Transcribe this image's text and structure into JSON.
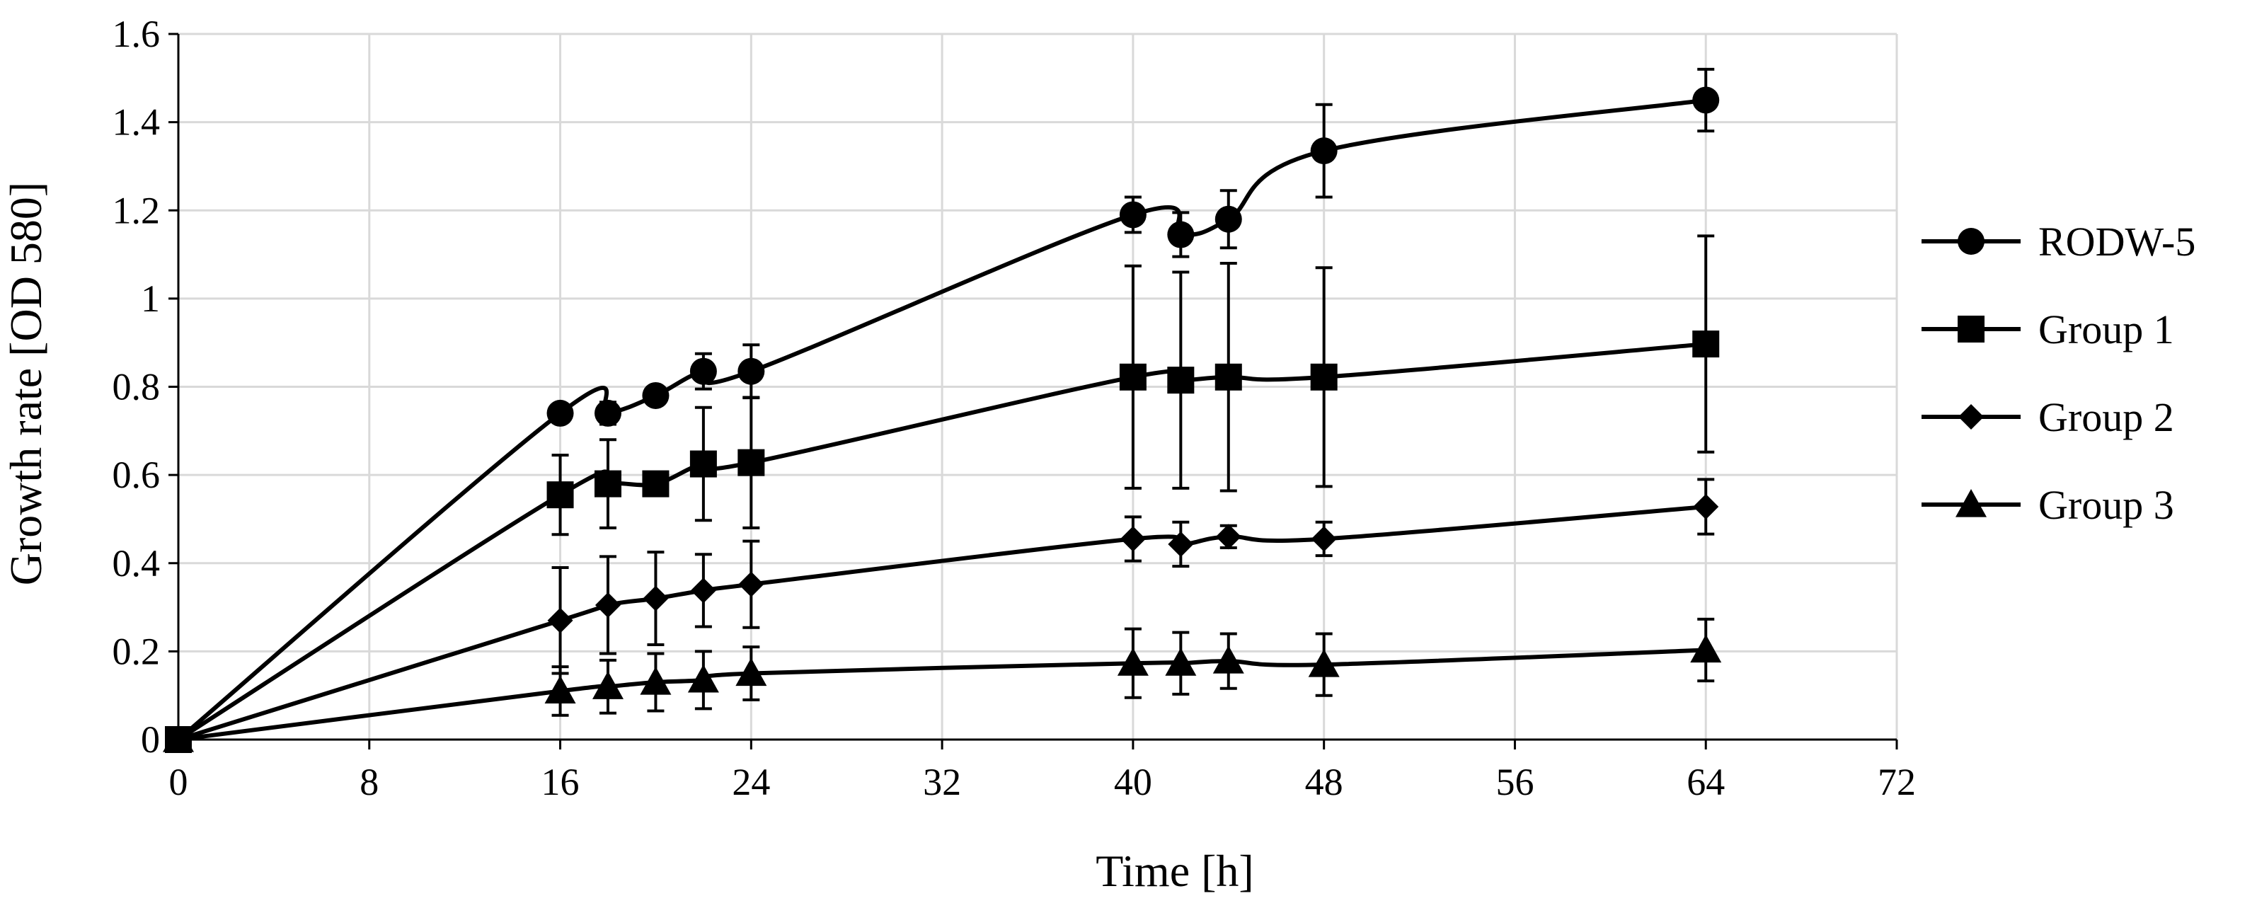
{
  "chart_data": {
    "type": "line",
    "title": "",
    "xlabel": "Time [h]",
    "ylabel": "Growth rate [OD 580]",
    "xlim": [
      0,
      72
    ],
    "ylim": [
      0,
      1.6
    ],
    "xticks": [
      0,
      8,
      16,
      24,
      32,
      40,
      48,
      56,
      64,
      72
    ],
    "yticks": [
      0,
      0.2,
      0.4,
      0.6,
      0.8,
      1,
      1.2,
      1.4,
      1.6
    ],
    "xtick_labels": [
      "0",
      "8",
      "16",
      "24",
      "32",
      "40",
      "48",
      "56",
      "64",
      "72"
    ],
    "ytick_labels": [
      "0",
      "0.2",
      "0.4",
      "0.6",
      "0.8",
      "1",
      "1.2",
      "1.4",
      "1.6"
    ],
    "grid": true,
    "legend_position": "right",
    "x": [
      0,
      16,
      18,
      20,
      22,
      24,
      40,
      42,
      44,
      48,
      64
    ],
    "series": [
      {
        "name": "RODW-5",
        "marker": "circle",
        "values": [
          0,
          0.74,
          0.74,
          0.78,
          0.835,
          0.835,
          1.19,
          1.145,
          1.18,
          1.335,
          1.45
        ],
        "errors": [
          0,
          0.015,
          0.025,
          0.02,
          0.04,
          0.06,
          0.04,
          0.05,
          0.065,
          0.105,
          0.07
        ]
      },
      {
        "name": "Group 1",
        "marker": "square",
        "values": [
          0,
          0.555,
          0.58,
          0.58,
          0.625,
          0.628,
          0.822,
          0.815,
          0.822,
          0.822,
          0.897
        ],
        "errors": [
          0,
          0.09,
          0.1,
          0.0,
          0.128,
          0.148,
          0.252,
          0.245,
          0.258,
          0.248,
          0.245
        ]
      },
      {
        "name": "Group 2",
        "marker": "diamond",
        "values": [
          0,
          0.27,
          0.305,
          0.32,
          0.338,
          0.352,
          0.455,
          0.443,
          0.46,
          0.455,
          0.528
        ],
        "errors": [
          0,
          0.12,
          0.11,
          0.105,
          0.082,
          0.098,
          0.05,
          0.05,
          0.025,
          0.038,
          0.062
        ]
      },
      {
        "name": "Group 3",
        "marker": "triangle",
        "values": [
          0,
          0.11,
          0.12,
          0.13,
          0.135,
          0.15,
          0.173,
          0.173,
          0.178,
          0.17,
          0.203
        ],
        "errors": [
          0,
          0.055,
          0.06,
          0.065,
          0.065,
          0.06,
          0.078,
          0.07,
          0.062,
          0.07,
          0.07
        ]
      }
    ]
  }
}
